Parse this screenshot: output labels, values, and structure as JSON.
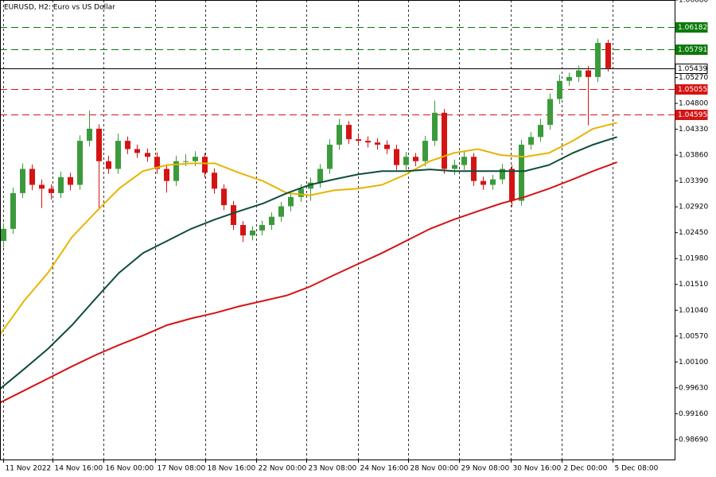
{
  "chart_data": {
    "type": "candlestick",
    "title": "EURUSD, H2:  Euro vs US Dollar",
    "up_color": "#3c9a3c",
    "down_color": "#d41414",
    "grid": true,
    "xlim": [
      -0.3,
      70
    ],
    "ylim": [
      0.98327,
      1.0668
    ],
    "yticks": [
      {
        "value": 1.0668,
        "label": "1.06680"
      },
      {
        "value": 1.0527,
        "label": "1.05270"
      },
      {
        "value": 1.048,
        "label": "1.04800"
      },
      {
        "value": 1.0433,
        "label": "1.04330"
      },
      {
        "value": 1.0386,
        "label": "1.03860"
      },
      {
        "value": 1.0339,
        "label": "1.03390"
      },
      {
        "value": 1.0292,
        "label": "1.02920"
      },
      {
        "value": 1.0245,
        "label": "1.02450"
      },
      {
        "value": 1.0198,
        "label": "1.01980"
      },
      {
        "value": 1.0151,
        "label": "1.01510"
      },
      {
        "value": 1.0104,
        "label": "1.01040"
      },
      {
        "value": 1.0057,
        "label": "1.00570"
      },
      {
        "value": 1.001,
        "label": "1.00100"
      },
      {
        "value": 0.9963,
        "label": "0.99630"
      },
      {
        "value": 0.9916,
        "label": "0.99160"
      },
      {
        "value": 0.9869,
        "label": "0.98690"
      }
    ],
    "xticks": [
      {
        "value": 0.03,
        "label": "11 Nov 2022"
      },
      {
        "value": 5.2,
        "label": "14 Nov 16:00"
      },
      {
        "value": 10.5,
        "label": "16 Nov 00:00"
      },
      {
        "value": 15.9,
        "label": "17 Nov 08:00"
      },
      {
        "value": 21.1,
        "label": "18 Nov 16:00"
      },
      {
        "value": 26.4,
        "label": "22 Nov 00:00"
      },
      {
        "value": 31.6,
        "label": "23 Nov 08:00"
      },
      {
        "value": 37.0,
        "label": "24 Nov 16:00"
      },
      {
        "value": 42.2,
        "label": "28 Nov 00:00"
      },
      {
        "value": 47.5,
        "label": "29 Nov 08:00"
      },
      {
        "value": 52.9,
        "label": "30 Nov 16:00"
      },
      {
        "value": 58.2,
        "label": "2 Dec 00:00"
      },
      {
        "value": 63.5,
        "label": "5 Dec 08:00"
      }
    ],
    "open": [
      1.023,
      1.0252,
      1.0317,
      1.0361,
      1.0332,
      1.0325,
      1.0317,
      1.0346,
      1.0332,
      1.0412,
      1.0434,
      1.0375,
      1.0361,
      1.0412,
      1.0397,
      1.039,
      1.0383,
      1.0361,
      1.0339,
      1.0375,
      1.0375,
      1.0383,
      1.0354,
      1.0325,
      1.0295,
      1.0259,
      1.024,
      1.0249,
      1.0259,
      1.0274,
      1.0293,
      1.031,
      1.0325,
      1.0336,
      1.0361,
      1.0405,
      1.0441,
      1.0415,
      1.0412,
      1.0409,
      1.0405,
      1.0397,
      1.0368,
      1.0383,
      1.0375,
      1.0412,
      1.0463,
      1.0361,
      1.0368,
      1.0383,
      1.0339,
      1.0332,
      1.0342,
      1.0361,
      1.0303,
      1.0405,
      1.0419,
      1.0441,
      1.0488,
      1.0521,
      1.0528,
      1.054,
      1.0528,
      1.059
    ],
    "high": [
      1.0262,
      1.0327,
      1.0371,
      1.0369,
      1.0342,
      1.0333,
      1.0356,
      1.0354,
      1.0422,
      1.0467,
      1.0442,
      1.0385,
      1.0425,
      1.042,
      1.0405,
      1.0398,
      1.0391,
      1.0369,
      1.0385,
      1.0388,
      1.0393,
      1.039,
      1.0362,
      1.0333,
      1.0303,
      1.0266,
      1.0257,
      1.0267,
      1.0282,
      1.0301,
      1.0318,
      1.0333,
      1.0345,
      1.037,
      1.0415,
      1.0452,
      1.0448,
      1.0423,
      1.042,
      1.0417,
      1.0413,
      1.0405,
      1.0392,
      1.039,
      1.0421,
      1.0485,
      1.047,
      1.0378,
      1.0392,
      1.039,
      1.0347,
      1.035,
      1.037,
      1.0368,
      1.0414,
      1.0428,
      1.0452,
      1.0498,
      1.0532,
      1.0536,
      1.0549,
      1.0548,
      1.0598,
      1.0596
    ],
    "low": [
      1.0218,
      1.0243,
      1.0308,
      1.0322,
      1.029,
      1.0305,
      1.0308,
      1.0322,
      1.0323,
      1.0402,
      1.029,
      1.0352,
      1.0352,
      1.0388,
      1.0381,
      1.0374,
      1.0352,
      1.0318,
      1.033,
      1.0366,
      1.0366,
      1.0345,
      1.0316,
      1.0286,
      1.025,
      1.0228,
      1.0231,
      1.024,
      1.025,
      1.0265,
      1.0284,
      1.0301,
      1.0303,
      1.0327,
      1.0352,
      1.0396,
      1.0406,
      1.0403,
      1.04,
      1.0396,
      1.0388,
      1.0359,
      1.0359,
      1.0366,
      1.0366,
      1.0403,
      1.0352,
      1.035,
      1.0359,
      1.033,
      1.0323,
      1.0323,
      1.0333,
      1.0292,
      1.0294,
      1.0396,
      1.041,
      1.0432,
      1.0479,
      1.0512,
      1.0519,
      1.044,
      1.0519,
      1.0538
    ],
    "close": [
      1.0252,
      1.0317,
      1.0361,
      1.0332,
      1.0325,
      1.0317,
      1.0346,
      1.0332,
      1.0412,
      1.0434,
      1.0375,
      1.0361,
      1.0412,
      1.0397,
      1.039,
      1.0383,
      1.0361,
      1.0339,
      1.0375,
      1.0375,
      1.0383,
      1.0354,
      1.0325,
      1.0295,
      1.0259,
      1.024,
      1.0249,
      1.0259,
      1.0274,
      1.0293,
      1.031,
      1.0325,
      1.0336,
      1.0361,
      1.0405,
      1.0441,
      1.0415,
      1.0412,
      1.0409,
      1.0405,
      1.0397,
      1.0368,
      1.0383,
      1.0375,
      1.0412,
      1.0463,
      1.0361,
      1.0368,
      1.0383,
      1.0339,
      1.0332,
      1.0342,
      1.0361,
      1.0303,
      1.0405,
      1.0419,
      1.0441,
      1.0488,
      1.0521,
      1.0528,
      1.054,
      1.0528,
      1.059,
      1.0544
    ],
    "lines": {
      "x": [
        -0.3,
        2.2,
        4.7,
        7.2,
        9.6,
        12.1,
        14.6,
        17.1,
        19.6,
        22.1,
        24.6,
        27.1,
        29.6,
        32.0,
        34.5,
        37.0,
        39.5,
        42.0,
        44.5,
        47.0,
        49.5,
        51.9,
        54.4,
        56.9,
        59.4,
        61.5,
        64.0
      ],
      "series": [
        {
          "color": "#e8b400",
          "values": [
            1.006,
            1.0121,
            1.0172,
            1.0237,
            1.0281,
            1.0325,
            1.0357,
            1.0368,
            1.0371,
            1.0371,
            1.0354,
            1.0339,
            1.0317,
            1.0313,
            1.0322,
            1.0325,
            1.0332,
            1.0351,
            1.0375,
            1.039,
            1.0397,
            1.0386,
            1.0383,
            1.039,
            1.0412,
            1.0434,
            1.0445
          ]
        },
        {
          "color": "#0f4d3a",
          "values": [
            0.9961,
            0.9997,
            1.0034,
            1.0077,
            1.0124,
            1.0172,
            1.0208,
            1.023,
            1.0252,
            1.0269,
            1.0284,
            1.0298,
            1.0317,
            1.0332,
            1.0342,
            1.0351,
            1.0357,
            1.0357,
            1.036,
            1.0357,
            1.0357,
            1.0357,
            1.0357,
            1.0368,
            1.039,
            1.0405,
            1.0419
          ]
        },
        {
          "color": "#d41414",
          "values": [
            0.9936,
            0.9958,
            0.998,
            1.0002,
            1.0022,
            1.0041,
            1.0058,
            1.0077,
            1.0089,
            1.0099,
            1.0111,
            1.0121,
            1.0131,
            1.0147,
            1.0168,
            1.0188,
            1.0208,
            1.023,
            1.0252,
            1.0269,
            1.0284,
            1.0298,
            1.031,
            1.0325,
            1.0342,
            1.0357,
            1.0373
          ]
        }
      ]
    },
    "levels": [
      {
        "value": 1.06182,
        "color": "#0a7a0a",
        "dashed": true
      },
      {
        "value": 1.05791,
        "color": "#0a7a0a",
        "dashed": true
      },
      {
        "value": 1.05439,
        "color": "#000000",
        "dashed": false
      },
      {
        "value": 1.05055,
        "color": "#d41414",
        "dashed": true
      },
      {
        "value": 1.04595,
        "color": "#d41414",
        "dashed": true
      }
    ]
  }
}
